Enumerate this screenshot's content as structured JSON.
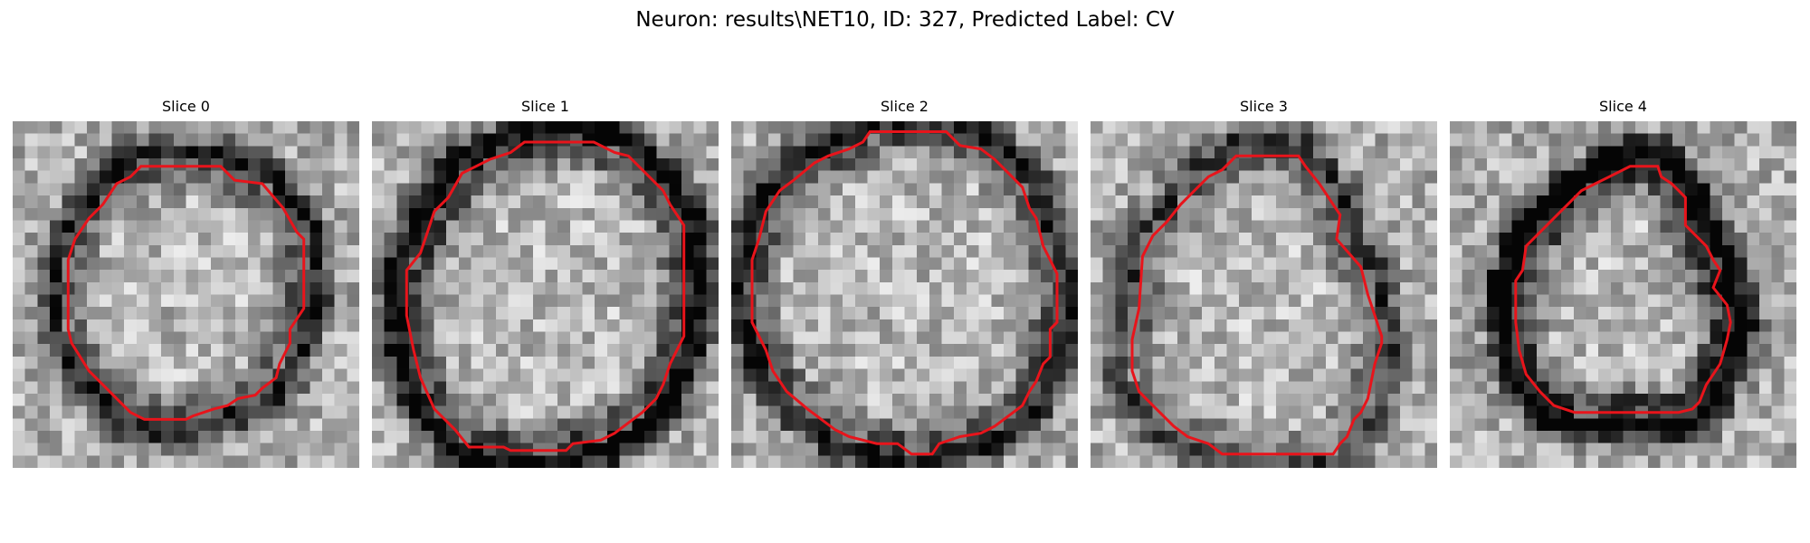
{
  "figure": {
    "title": "Neuron: results\\NET10, ID: 327, Predicted Label: CV",
    "contour_color": "#e8141b",
    "colormap": "grayscale",
    "panels": [
      {
        "title": "Slice 0",
        "seed": 11,
        "ring_strength": 0.55,
        "contour": [
          [
            0.37,
            0.13
          ],
          [
            0.6,
            0.13
          ],
          [
            0.64,
            0.17
          ],
          [
            0.72,
            0.18
          ],
          [
            0.78,
            0.25
          ],
          [
            0.82,
            0.32
          ],
          [
            0.84,
            0.34
          ],
          [
            0.84,
            0.54
          ],
          [
            0.8,
            0.6
          ],
          [
            0.8,
            0.64
          ],
          [
            0.77,
            0.7
          ],
          [
            0.76,
            0.74
          ],
          [
            0.72,
            0.77
          ],
          [
            0.7,
            0.79
          ],
          [
            0.65,
            0.8
          ],
          [
            0.62,
            0.82
          ],
          [
            0.58,
            0.83
          ],
          [
            0.52,
            0.85
          ],
          [
            0.5,
            0.86
          ],
          [
            0.38,
            0.86
          ],
          [
            0.34,
            0.84
          ],
          [
            0.3,
            0.8
          ],
          [
            0.26,
            0.76
          ],
          [
            0.22,
            0.72
          ],
          [
            0.17,
            0.64
          ],
          [
            0.16,
            0.6
          ],
          [
            0.16,
            0.4
          ],
          [
            0.18,
            0.34
          ],
          [
            0.22,
            0.28
          ],
          [
            0.26,
            0.24
          ],
          [
            0.3,
            0.18
          ],
          [
            0.34,
            0.16
          ]
        ]
      },
      {
        "title": "Slice 1",
        "seed": 23,
        "ring_strength": 0.7,
        "contour": [
          [
            0.44,
            0.06
          ],
          [
            0.64,
            0.06
          ],
          [
            0.7,
            0.09
          ],
          [
            0.74,
            0.1
          ],
          [
            0.8,
            0.16
          ],
          [
            0.84,
            0.2
          ],
          [
            0.86,
            0.24
          ],
          [
            0.9,
            0.3
          ],
          [
            0.9,
            0.62
          ],
          [
            0.88,
            0.66
          ],
          [
            0.86,
            0.7
          ],
          [
            0.84,
            0.76
          ],
          [
            0.82,
            0.8
          ],
          [
            0.78,
            0.84
          ],
          [
            0.74,
            0.87
          ],
          [
            0.7,
            0.9
          ],
          [
            0.66,
            0.92
          ],
          [
            0.58,
            0.93
          ],
          [
            0.56,
            0.95
          ],
          [
            0.4,
            0.95
          ],
          [
            0.38,
            0.94
          ],
          [
            0.28,
            0.94
          ],
          [
            0.24,
            0.89
          ],
          [
            0.18,
            0.83
          ],
          [
            0.14,
            0.74
          ],
          [
            0.12,
            0.66
          ],
          [
            0.1,
            0.56
          ],
          [
            0.1,
            0.43
          ],
          [
            0.14,
            0.38
          ],
          [
            0.16,
            0.32
          ],
          [
            0.18,
            0.26
          ],
          [
            0.22,
            0.22
          ],
          [
            0.26,
            0.15
          ],
          [
            0.3,
            0.13
          ],
          [
            0.34,
            0.11
          ],
          [
            0.4,
            0.09
          ]
        ]
      },
      {
        "title": "Slice 2",
        "seed": 37,
        "ring_strength": 0.6,
        "contour": [
          [
            0.4,
            0.03
          ],
          [
            0.62,
            0.03
          ],
          [
            0.66,
            0.07
          ],
          [
            0.72,
            0.08
          ],
          [
            0.76,
            0.11
          ],
          [
            0.8,
            0.15
          ],
          [
            0.84,
            0.19
          ],
          [
            0.86,
            0.25
          ],
          [
            0.88,
            0.28
          ],
          [
            0.9,
            0.36
          ],
          [
            0.92,
            0.4
          ],
          [
            0.94,
            0.44
          ],
          [
            0.94,
            0.58
          ],
          [
            0.92,
            0.6
          ],
          [
            0.92,
            0.68
          ],
          [
            0.9,
            0.7
          ],
          [
            0.88,
            0.75
          ],
          [
            0.86,
            0.78
          ],
          [
            0.84,
            0.82
          ],
          [
            0.8,
            0.85
          ],
          [
            0.76,
            0.88
          ],
          [
            0.72,
            0.9
          ],
          [
            0.66,
            0.91
          ],
          [
            0.6,
            0.93
          ],
          [
            0.58,
            0.96
          ],
          [
            0.52,
            0.96
          ],
          [
            0.48,
            0.93
          ],
          [
            0.42,
            0.93
          ],
          [
            0.34,
            0.91
          ],
          [
            0.3,
            0.89
          ],
          [
            0.26,
            0.86
          ],
          [
            0.22,
            0.83
          ],
          [
            0.16,
            0.78
          ],
          [
            0.12,
            0.72
          ],
          [
            0.1,
            0.66
          ],
          [
            0.06,
            0.58
          ],
          [
            0.06,
            0.4
          ],
          [
            0.08,
            0.34
          ],
          [
            0.1,
            0.26
          ],
          [
            0.14,
            0.2
          ],
          [
            0.18,
            0.17
          ],
          [
            0.24,
            0.12
          ],
          [
            0.28,
            0.1
          ],
          [
            0.34,
            0.08
          ],
          [
            0.38,
            0.06
          ]
        ]
      },
      {
        "title": "Slice 3",
        "seed": 51,
        "ring_strength": 0.45,
        "contour": [
          [
            0.42,
            0.1
          ],
          [
            0.6,
            0.1
          ],
          [
            0.62,
            0.13
          ],
          [
            0.66,
            0.18
          ],
          [
            0.7,
            0.24
          ],
          [
            0.72,
            0.27
          ],
          [
            0.71,
            0.34
          ],
          [
            0.78,
            0.42
          ],
          [
            0.8,
            0.5
          ],
          [
            0.82,
            0.56
          ],
          [
            0.84,
            0.62
          ],
          [
            0.84,
            0.64
          ],
          [
            0.82,
            0.7
          ],
          [
            0.8,
            0.8
          ],
          [
            0.78,
            0.84
          ],
          [
            0.76,
            0.86
          ],
          [
            0.74,
            0.91
          ],
          [
            0.72,
            0.93
          ],
          [
            0.7,
            0.96
          ],
          [
            0.38,
            0.96
          ],
          [
            0.34,
            0.93
          ],
          [
            0.28,
            0.91
          ],
          [
            0.24,
            0.88
          ],
          [
            0.18,
            0.82
          ],
          [
            0.14,
            0.78
          ],
          [
            0.12,
            0.72
          ],
          [
            0.12,
            0.63
          ],
          [
            0.14,
            0.54
          ],
          [
            0.15,
            0.39
          ],
          [
            0.18,
            0.33
          ],
          [
            0.22,
            0.29
          ],
          [
            0.26,
            0.24
          ],
          [
            0.3,
            0.2
          ],
          [
            0.34,
            0.16
          ],
          [
            0.38,
            0.14
          ]
        ]
      },
      {
        "title": "Slice 4",
        "seed": 67,
        "ring_strength": 0.8,
        "contour": [
          [
            0.52,
            0.13
          ],
          [
            0.6,
            0.13
          ],
          [
            0.61,
            0.16
          ],
          [
            0.64,
            0.18
          ],
          [
            0.66,
            0.2
          ],
          [
            0.68,
            0.22
          ],
          [
            0.68,
            0.3
          ],
          [
            0.74,
            0.36
          ],
          [
            0.76,
            0.4
          ],
          [
            0.78,
            0.43
          ],
          [
            0.76,
            0.48
          ],
          [
            0.8,
            0.53
          ],
          [
            0.81,
            0.58
          ],
          [
            0.8,
            0.63
          ],
          [
            0.78,
            0.7
          ],
          [
            0.76,
            0.73
          ],
          [
            0.74,
            0.76
          ],
          [
            0.72,
            0.81
          ],
          [
            0.7,
            0.83
          ],
          [
            0.66,
            0.84
          ],
          [
            0.58,
            0.84
          ],
          [
            0.5,
            0.84
          ],
          [
            0.36,
            0.84
          ],
          [
            0.3,
            0.82
          ],
          [
            0.26,
            0.78
          ],
          [
            0.22,
            0.73
          ],
          [
            0.2,
            0.66
          ],
          [
            0.19,
            0.58
          ],
          [
            0.19,
            0.46
          ],
          [
            0.21,
            0.43
          ],
          [
            0.22,
            0.36
          ],
          [
            0.26,
            0.32
          ],
          [
            0.3,
            0.28
          ],
          [
            0.34,
            0.24
          ],
          [
            0.38,
            0.2
          ],
          [
            0.42,
            0.18
          ],
          [
            0.46,
            0.16
          ]
        ]
      }
    ]
  }
}
